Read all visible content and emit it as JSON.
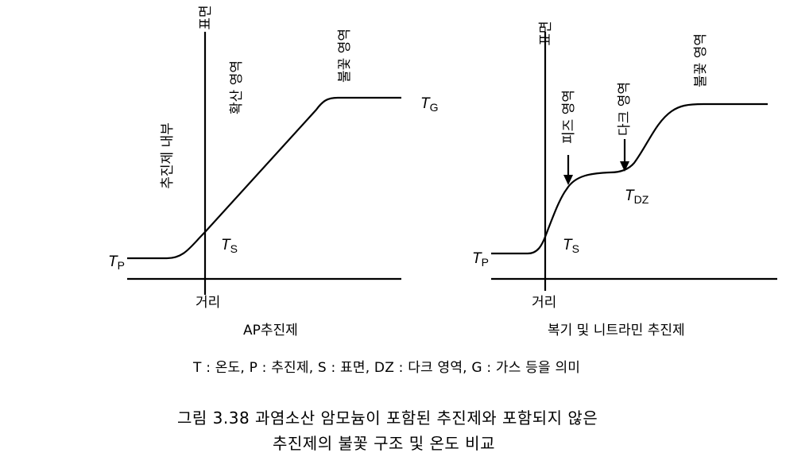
{
  "left_panel": {
    "surface_label": "표면",
    "diffusion_label": "확산 영역",
    "flame_label": "불꽃 영역",
    "interior_label": "추진제 내부",
    "tg_main": "T",
    "tg_sub": "G",
    "tp_main": "T",
    "tp_sub": "P",
    "ts_main": "T",
    "ts_sub": "S",
    "x_label": "거리",
    "title": "AP추진제"
  },
  "right_panel": {
    "surface_label": "표면",
    "fizz_label": "피즈 영역",
    "dark_label": "다크 영역",
    "flame_label": "불꽃 영역",
    "tdz_main": "T",
    "tdz_sub": "DZ",
    "tp_main": "T",
    "tp_sub": "P",
    "ts_main": "T",
    "ts_sub": "S",
    "x_label": "거리",
    "title": "복기 및 니트라민 추진제"
  },
  "legend": "T : 온도,  P : 추진제,  S : 표면,  DZ : 다크  영역,  G : 가스 등을 의미",
  "caption": {
    "line1": "그림 3.38  과염소산 암모늄이 포함된 추진제와 포함되지 않은",
    "line2": "추진제의 불꽃 구조 및 온도 비교"
  }
}
